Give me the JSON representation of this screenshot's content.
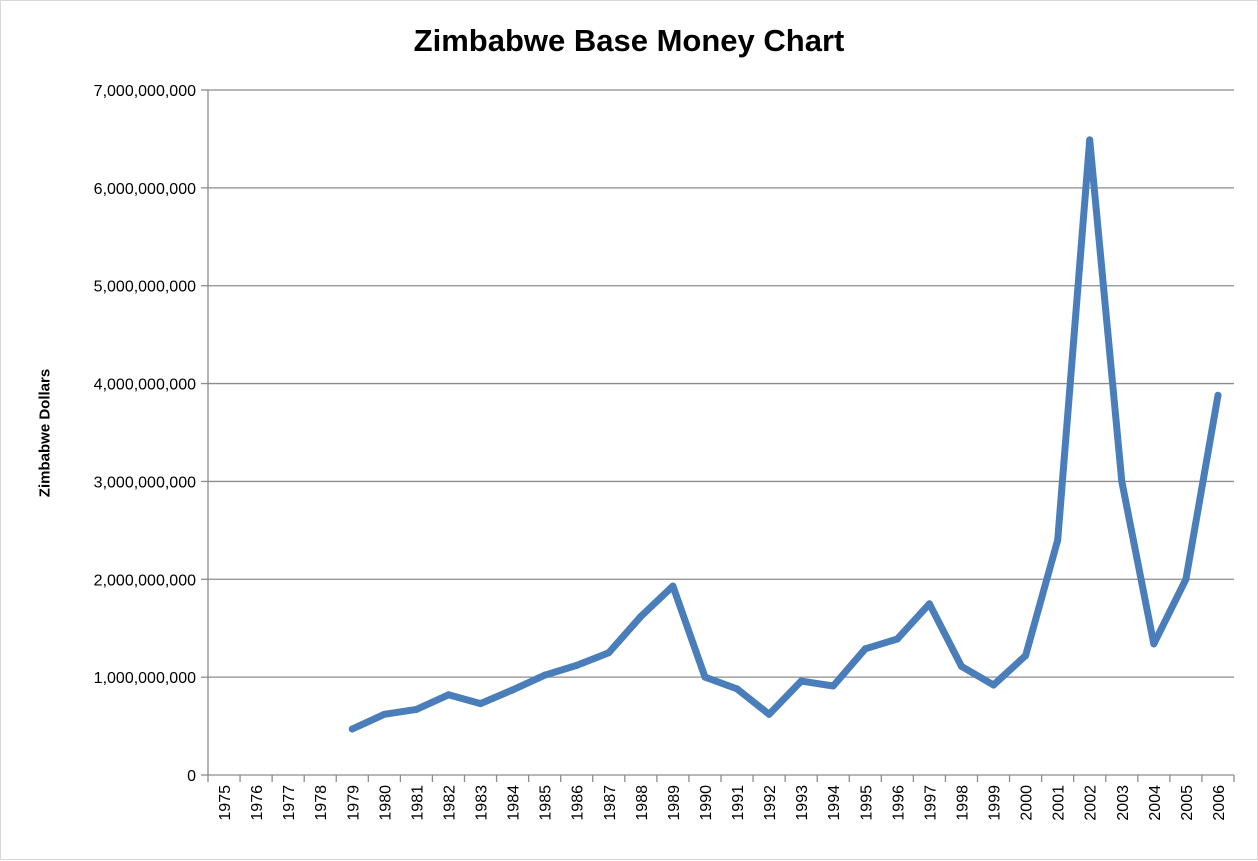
{
  "chart_data": {
    "type": "line",
    "title": "Zimbabwe Base Money Chart",
    "xlabel": "",
    "ylabel": "Zimbabwe Dollars",
    "ylim": [
      0,
      7000000000
    ],
    "yticks": [
      0,
      1000000000,
      2000000000,
      3000000000,
      4000000000,
      5000000000,
      6000000000,
      7000000000
    ],
    "ytick_labels": [
      "0",
      "1,000,000,000",
      "2,000,000,000",
      "3,000,000,000",
      "4,000,000,000",
      "5,000,000,000",
      "6,000,000,000",
      "7,000,000,000"
    ],
    "categories": [
      "1975",
      "1976",
      "1977",
      "1978",
      "1979",
      "1980",
      "1981",
      "1982",
      "1983",
      "1984",
      "1985",
      "1986",
      "1987",
      "1988",
      "1989",
      "1990",
      "1991",
      "1992",
      "1993",
      "1994",
      "1995",
      "1996",
      "1997",
      "1998",
      "1999",
      "2000",
      "2001",
      "2002",
      "2003",
      "2004",
      "2005",
      "2006"
    ],
    "series": [
      {
        "values": [
          null,
          null,
          null,
          null,
          470000000,
          620000000,
          670000000,
          820000000,
          730000000,
          870000000,
          1020000000,
          1120000000,
          1250000000,
          1620000000,
          1930000000,
          1000000000,
          880000000,
          620000000,
          960000000,
          910000000,
          1290000000,
          1390000000,
          1750000000,
          1110000000,
          920000000,
          1220000000,
          2400000000,
          6490000000,
          3000000000,
          1340000000,
          2000000000,
          3880000000
        ]
      }
    ],
    "grid": true,
    "legend": "none",
    "line_color": "#4a7ebb"
  }
}
